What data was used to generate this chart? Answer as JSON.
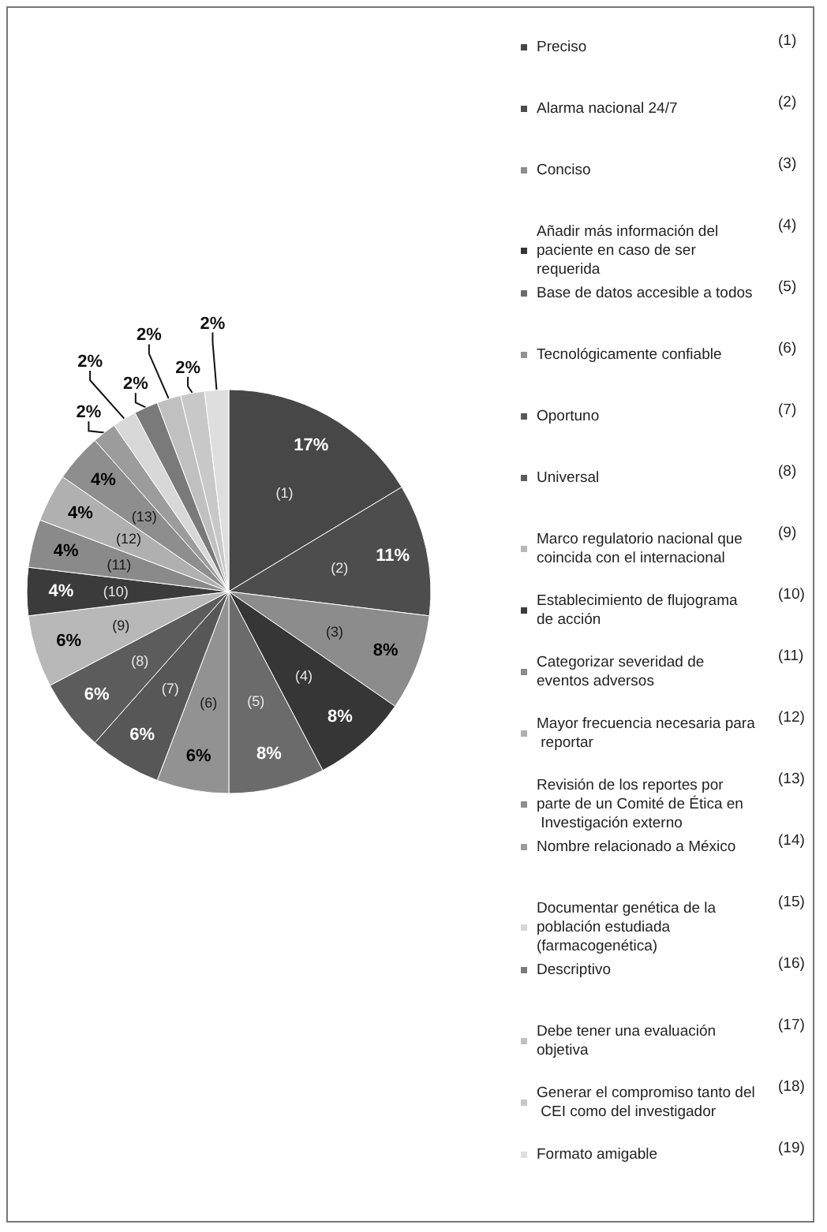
{
  "chart_data": {
    "type": "pie",
    "categories": [
      "Preciso",
      "Alarma nacional 24/7",
      "Conciso",
      "Añadir más información del paciente en caso de ser requerida",
      "Base de datos accesible a todos",
      "Tecnológicamente confiable",
      "Oportuno",
      "Universal",
      "Marco regulatorio nacional que coincida con el internacional",
      "Establecimiento de flujograma de acción",
      "Categorizar severidad de eventos adversos",
      "Mayor frecuencia necesaria para reportar",
      "Revisión de los reportes por parte de un Comité de Ética en Investigación externo",
      "Nombre relacionado a México",
      "Documentar genética de la población estudiada (farmacogenética)",
      "Descriptivo",
      "Debe tener una evaluación objetiva",
      "Generar el compromiso tanto del CEI como del investigador",
      "Formato amigable"
    ],
    "values": [
      17,
      11,
      8,
      8,
      8,
      6,
      6,
      6,
      6,
      4,
      4,
      4,
      4,
      2,
      2,
      2,
      2,
      2,
      2
    ],
    "value_labels": [
      "17%",
      "11%",
      "8%",
      "8%",
      "8%",
      "6%",
      "6%",
      "6%",
      "6%",
      "4%",
      "4%",
      "4%",
      "4%",
      "2%",
      "2%",
      "2%",
      "2%",
      "2%",
      "2%"
    ],
    "colors": [
      "#474747",
      "#4d4d4d",
      "#8c8c8c",
      "#363636",
      "#6b6b6b",
      "#929292",
      "#575757",
      "#5c5c5c",
      "#b8b8b8",
      "#3b3b3b",
      "#8a8a8a",
      "#b0b0b0",
      "#8e8e8e",
      "#9c9c9c",
      "#d8d8d8",
      "#7a7a7a",
      "#c0c0c0",
      "#c8c8c8",
      "#dedede"
    ],
    "annotations": [
      "(1)",
      "(2)",
      "(3)",
      "(4)",
      "(5)",
      "(6)",
      "(7)",
      "(8)",
      "(9)",
      "(10)",
      "(11)",
      "(12)",
      "(13)",
      "(14)",
      "(15)",
      "(16)",
      "(17)",
      "(18)",
      "(19)"
    ],
    "legend": "right"
  }
}
